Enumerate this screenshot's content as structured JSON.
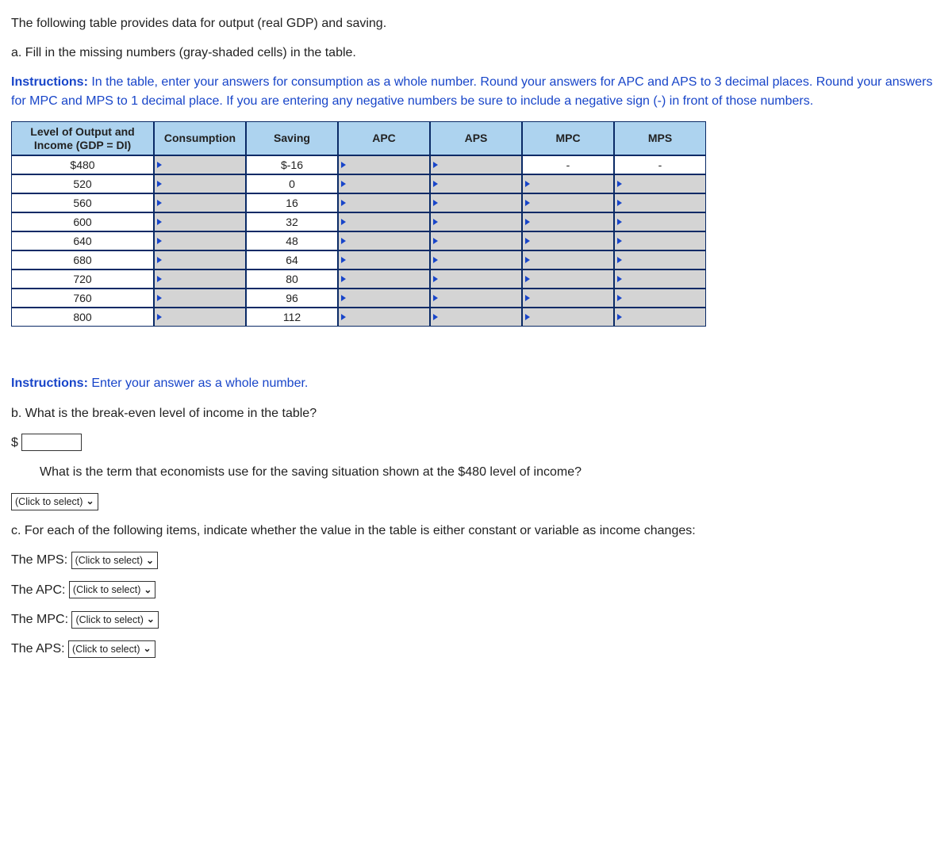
{
  "intro1": "The following table provides data for output (real GDP) and saving.",
  "intro2": "a. Fill in the missing numbers (gray-shaded cells) in the table.",
  "instructionsLabel": "Instructions:",
  "instructions1": " In the table, enter your answers for consumption as a whole number. Round your answers for APC and APS to 3 decimal places. Round your answers for MPC and MPS to 1 decimal place. If you are entering any negative numbers be sure to include a negative sign (-) in front of those numbers.",
  "table": {
    "headers": {
      "level": "Level of Output and Income (GDP = DI)",
      "consumption": "Consumption",
      "saving": "Saving",
      "apc": "APC",
      "aps": "APS",
      "mpc": "MPC",
      "mps": "MPS"
    },
    "rows": [
      {
        "level": "$480",
        "consumption_input": true,
        "saving": "$-16",
        "apc_input": true,
        "aps_input": true,
        "mpc": "-",
        "mps": "-"
      },
      {
        "level": "520",
        "consumption_input": true,
        "saving": "0",
        "apc_input": true,
        "aps_input": true,
        "mpc_input": true,
        "mps_input": true
      },
      {
        "level": "560",
        "consumption_input": true,
        "saving": "16",
        "apc_input": true,
        "aps_input": true,
        "mpc_input": true,
        "mps_input": true
      },
      {
        "level": "600",
        "consumption_input": true,
        "saving": "32",
        "apc_input": true,
        "aps_input": true,
        "mpc_input": true,
        "mps_input": true
      },
      {
        "level": "640",
        "consumption_input": true,
        "saving": "48",
        "apc_input": true,
        "aps_input": true,
        "mpc_input": true,
        "mps_input": true
      },
      {
        "level": "680",
        "consumption_input": true,
        "saving": "64",
        "apc_input": true,
        "aps_input": true,
        "mpc_input": true,
        "mps_input": true
      },
      {
        "level": "720",
        "consumption_input": true,
        "saving": "80",
        "apc_input": true,
        "aps_input": true,
        "mpc_input": true,
        "mps_input": true
      },
      {
        "level": "760",
        "consumption_input": true,
        "saving": "96",
        "apc_input": true,
        "aps_input": true,
        "mpc_input": true,
        "mps_input": true
      },
      {
        "level": "800",
        "consumption_input": true,
        "saving": "112",
        "apc_input": true,
        "aps_input": true,
        "mpc_input": true,
        "mps_input": true
      }
    ]
  },
  "instructions2": " Enter your answer as a whole number.",
  "partB": {
    "question": "b. What is the break-even level of income in the table?",
    "currency": "$",
    "termQuestion": "What is the term that economists use for the saving situation shown at the $480 level of income?",
    "selectPlaceholder": "(Click to select)"
  },
  "partC": {
    "intro": "c. For each of the following items, indicate whether the value in the table is either constant or variable as income changes:",
    "items": [
      {
        "label": "The MPS:"
      },
      {
        "label": "The APC:"
      },
      {
        "label": "The MPC:"
      },
      {
        "label": "The APS:"
      }
    ],
    "selectPlaceholder": "(Click to select)"
  },
  "colors": {
    "header_bg": "#add3ef",
    "input_bg": "#d4d4d4",
    "border": "#0a2a66",
    "link_blue": "#1845c9",
    "text": "#222222"
  }
}
